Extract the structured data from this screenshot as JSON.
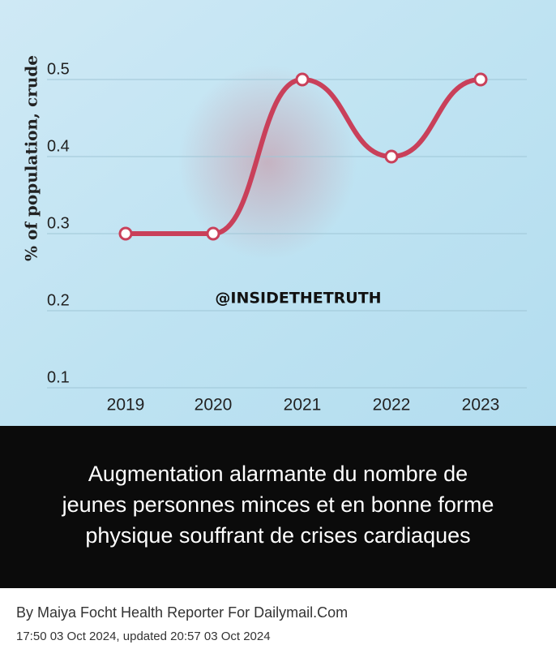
{
  "chart_data": {
    "type": "line",
    "y_label": "% of population, crude",
    "categories": [
      "2019",
      "2020",
      "2021",
      "2022",
      "2023"
    ],
    "values": [
      0.3,
      0.3,
      0.5,
      0.4,
      0.5
    ],
    "color": "#c9405a",
    "ylim": [
      0.1,
      0.5
    ],
    "yticks": [
      0.1,
      0.2,
      0.3,
      0.4,
      0.5
    ],
    "grid": true,
    "watermark": "@INSIDETHETRUTH"
  },
  "caption": [
    "Augmentation alarmante du nombre de",
    "jeunes personnes minces et en bonne forme",
    "physique souffrant de crises cardiaques"
  ],
  "byline": "By Maiya Focht Health Reporter For Dailymail.Com",
  "timestamp": "17:50 03 Oct 2024, updated 20:57 03 Oct 2024"
}
